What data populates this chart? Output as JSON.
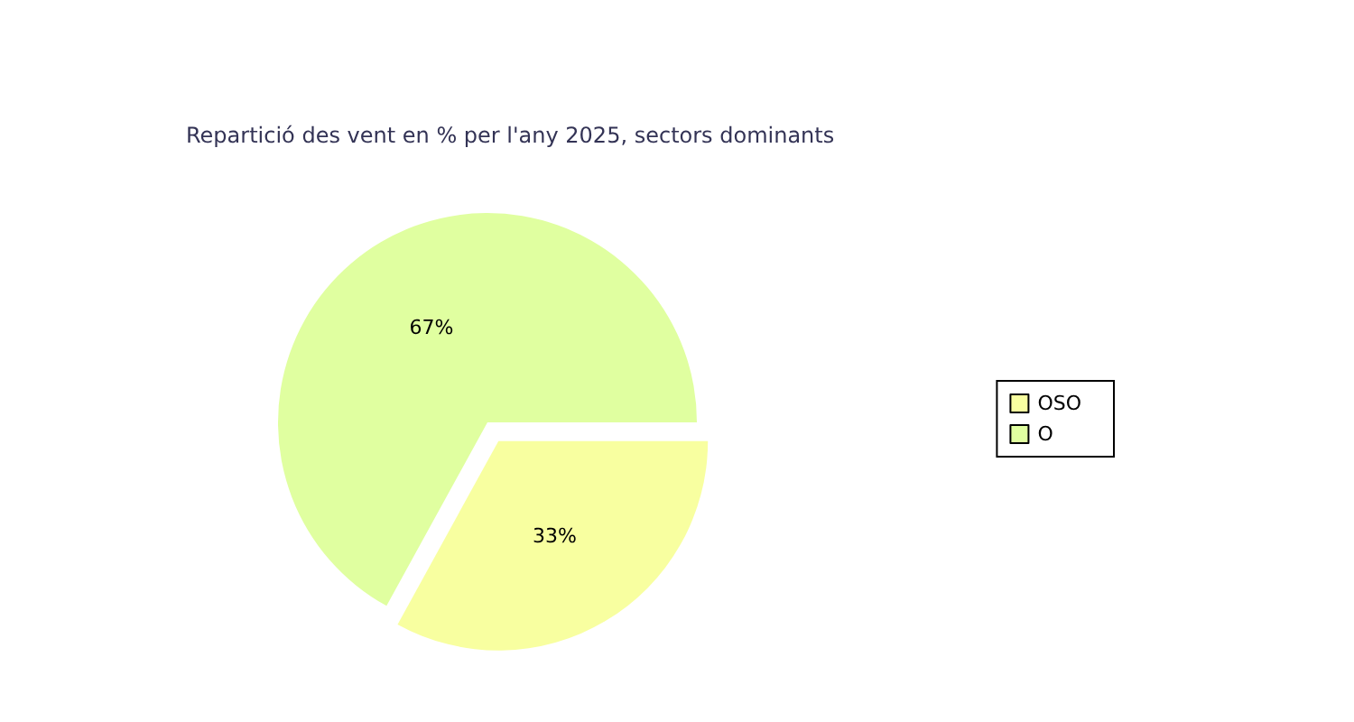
{
  "chart_data": {
    "type": "pie",
    "title": "Repartició des vent en % per l'any 2025, sectors dominants",
    "categories": [
      "OSO",
      "O"
    ],
    "values": [
      33,
      67
    ],
    "value_labels": [
      "33%",
      "67%"
    ],
    "colors": [
      "#f8ffa0",
      "#e0ffa0"
    ],
    "legend": "right"
  }
}
